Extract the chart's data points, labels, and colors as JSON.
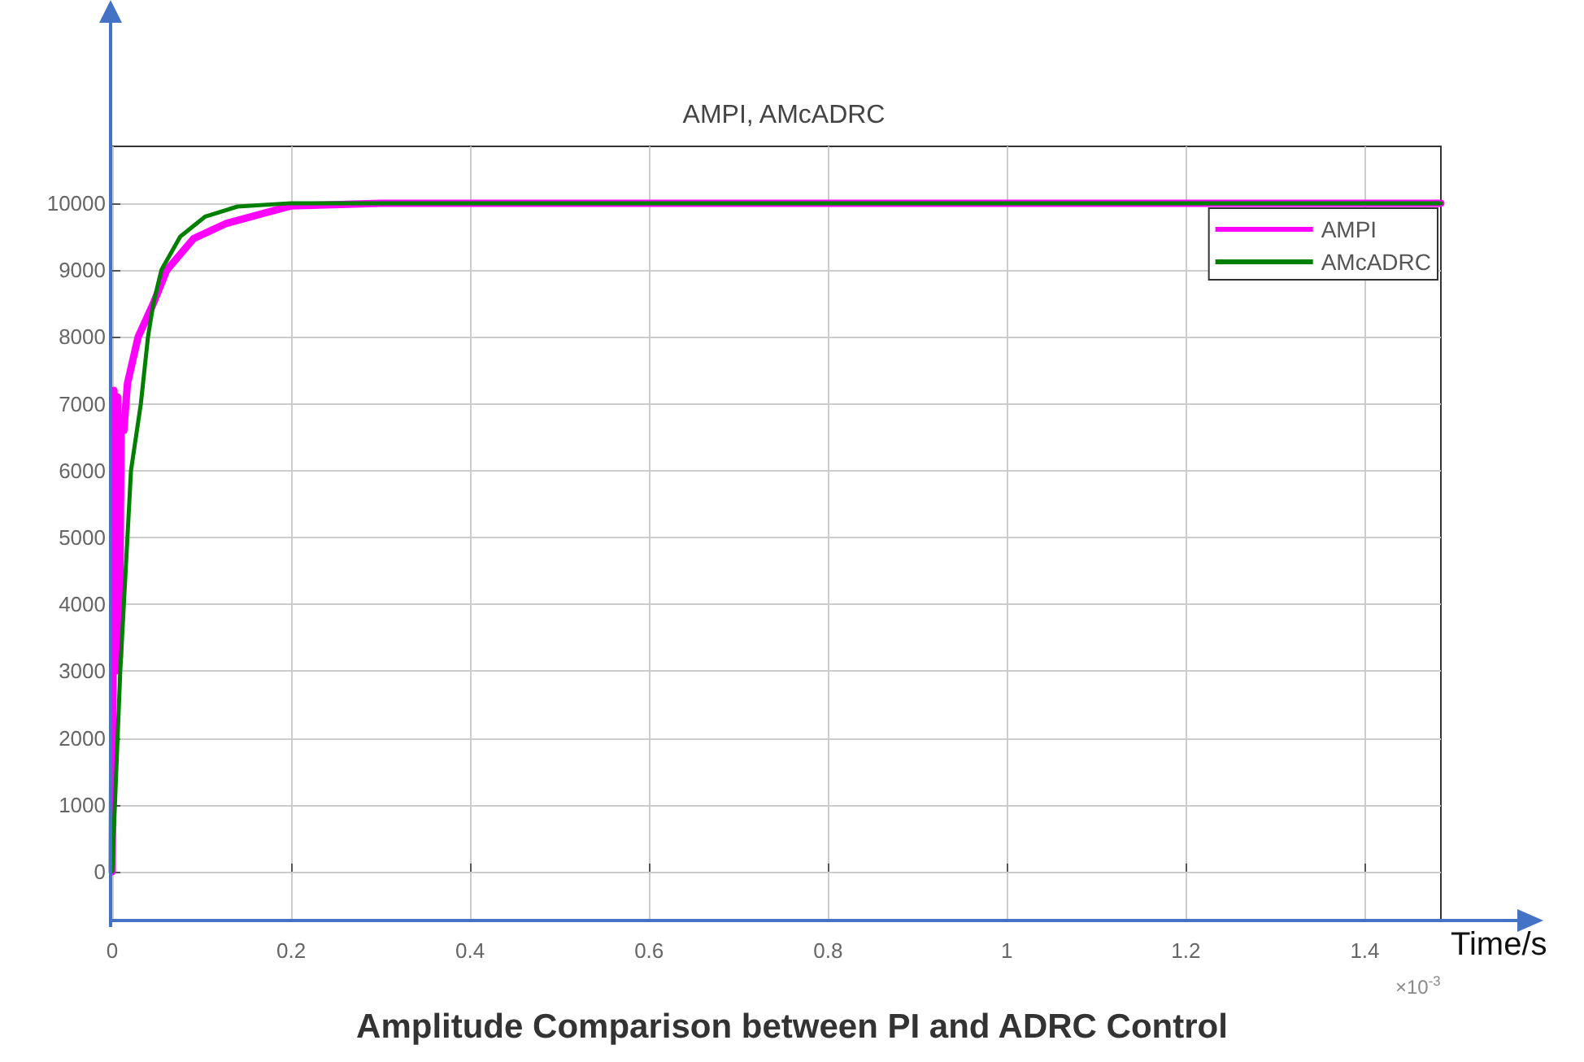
{
  "chart_data": {
    "type": "line",
    "title": "AMPI, AMcADRC",
    "xlabel": "Time/s",
    "annotations": [
      "×10$^{-3}$",
      "Amplitude Comparison between PI and ADRC Control"
    ],
    "xlim": [
      0,
      1.485
    ],
    "ylim": [
      -730,
      10850
    ],
    "xticks": [
      0,
      0.2,
      0.4,
      0.6,
      0.8,
      1,
      1.2,
      1.4
    ],
    "yticks": [
      0,
      1000,
      2000,
      3000,
      4000,
      5000,
      6000,
      7000,
      8000,
      9000,
      10000
    ],
    "grid": true,
    "legend": "top right",
    "marker": "none",
    "line_style": "solid",
    "series": [
      {
        "name": "AMPI",
        "color": "#ff00ff",
        "x": [
          0,
          0.002,
          0.004,
          0.006,
          0.008,
          0.01,
          0.013,
          0.017,
          0.029,
          0.046,
          0.061,
          0.091,
          0.128,
          0.2,
          0.3,
          1.485
        ],
        "values": [
          0,
          7200,
          3000,
          7100,
          3200,
          6800,
          6600,
          7300,
          8000,
          8500,
          9000,
          9470,
          9700,
          9960,
          10000,
          10000
        ]
      },
      {
        "name": "AMcADRC",
        "color": "#007f00",
        "x": [
          0,
          0.009,
          0.021,
          0.032,
          0.04,
          0.046,
          0.055,
          0.076,
          0.104,
          0.14,
          0.2,
          1.485
        ],
        "values": [
          0,
          3000,
          6000,
          7000,
          8000,
          8500,
          9000,
          9500,
          9800,
          9950,
          10000,
          10000
        ]
      }
    ]
  }
}
